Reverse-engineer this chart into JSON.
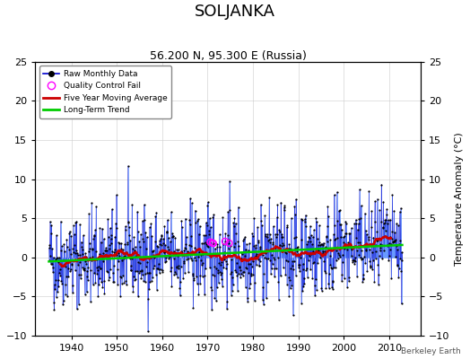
{
  "title": "SOLJANKA",
  "subtitle": "56.200 N, 95.300 E (Russia)",
  "ylabel": "Temperature Anomaly (°C)",
  "credit": "Berkeley Earth",
  "ylim": [
    -10,
    25
  ],
  "xlim": [
    1932,
    2017
  ],
  "yticks": [
    -10,
    -5,
    0,
    5,
    10,
    15,
    20,
    25
  ],
  "xticks": [
    1940,
    1950,
    1960,
    1970,
    1980,
    1990,
    2000,
    2010
  ],
  "seed": 42,
  "n_months": 936,
  "start_year": 1935,
  "stem_color": "#6699ff",
  "line_color": "#0000cc",
  "dot_color": "#000000",
  "qc_color": "#ff00ff",
  "moving_avg_color": "#cc0000",
  "trend_color": "#00cc00",
  "background_color": "#ffffff",
  "plot_bg_color": "#ffffff",
  "title_fontsize": 13,
  "subtitle_fontsize": 9,
  "label_fontsize": 8,
  "tick_fontsize": 8
}
